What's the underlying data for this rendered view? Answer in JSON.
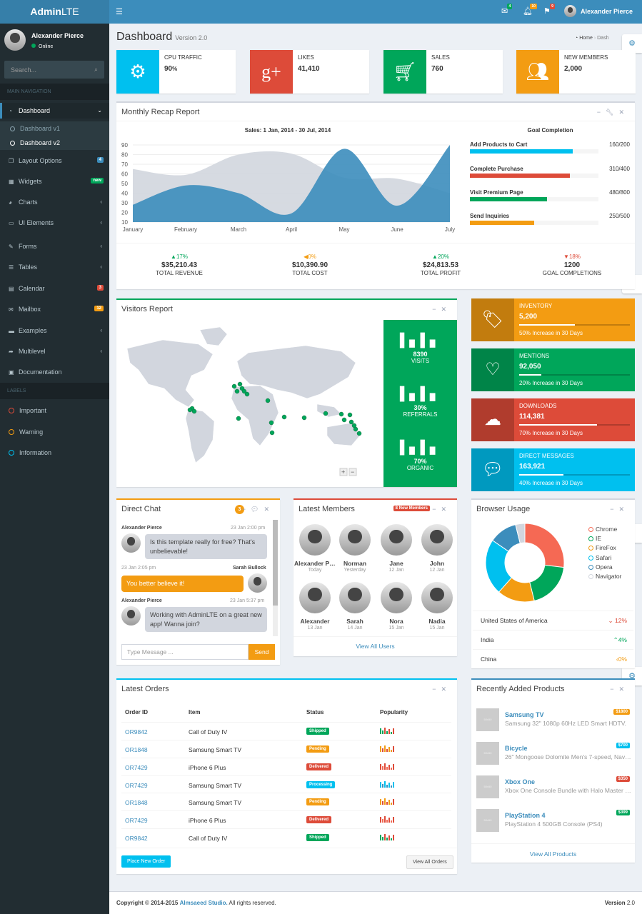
{
  "app": {
    "logo_bold": "Admin",
    "logo_light": "LTE",
    "user": "Alexander Pierce",
    "status": "Online"
  },
  "topnav": {
    "messages_count": "4",
    "notifications_count": "10",
    "tasks_count": "9"
  },
  "sidebar": {
    "search_placeholder": "Search...",
    "main_header": "MAIN NAVIGATION",
    "items": [
      {
        "label": "Dashboard"
      },
      {
        "label": "Dashboard v1"
      },
      {
        "label": "Dashboard v2"
      },
      {
        "label": "Layout Options",
        "badge": "4"
      },
      {
        "label": "Widgets",
        "badge": "new"
      },
      {
        "label": "Charts"
      },
      {
        "label": "UI Elements"
      },
      {
        "label": "Forms"
      },
      {
        "label": "Tables"
      },
      {
        "label": "Calendar",
        "badge": "3"
      },
      {
        "label": "Mailbox",
        "badge": "12"
      },
      {
        "label": "Examples"
      },
      {
        "label": "Multilevel"
      },
      {
        "label": "Documentation"
      }
    ],
    "labels_header": "LABELS",
    "labels": [
      "Important",
      "Warning",
      "Information"
    ]
  },
  "page": {
    "title": "Dashboard",
    "subtitle": "Version 2.0",
    "bc_home": "Home",
    "bc_cur": "Dash"
  },
  "info_boxes": [
    {
      "title": "CPU TRAFFIC",
      "value": "90",
      "unit": "%",
      "color": "#00c0ef",
      "icon": "gear-icon"
    },
    {
      "title": "LIKES",
      "value": "41,410",
      "color": "#dd4b39",
      "icon": "google-plus-icon"
    },
    {
      "title": "SALES",
      "value": "760",
      "color": "#00a65a",
      "icon": "cart-icon"
    },
    {
      "title": "NEW MEMBERS",
      "value": "2,000",
      "color": "#f39c12",
      "icon": "people-icon"
    }
  ],
  "recap": {
    "title": "Monthly Recap Report",
    "goal_title": "Goal Completion",
    "goals": [
      {
        "label": "Add Products to Cart",
        "done": 160,
        "total": 200,
        "text": "160/200",
        "color": "#00c0ef"
      },
      {
        "label": "Complete Purchase",
        "done": 310,
        "total": 400,
        "text": "310/400",
        "color": "#dd4b39"
      },
      {
        "label": "Visit Premium Page",
        "done": 480,
        "total": 800,
        "text": "480/800",
        "color": "#00a65a"
      },
      {
        "label": "Send Inquiries",
        "done": 250,
        "total": 500,
        "text": "250/500",
        "color": "#f39c12"
      }
    ],
    "stats": [
      {
        "pct": "17%",
        "amount": "$35,210.43",
        "label": "TOTAL REVENUE",
        "dir": "up",
        "color": "#00a65a"
      },
      {
        "pct": "0%",
        "amount": "$10,390.90",
        "label": "TOTAL COST",
        "dir": "left",
        "color": "#f39c12"
      },
      {
        "pct": "20%",
        "amount": "$24,813.53",
        "label": "TOTAL PROFIT",
        "dir": "up",
        "color": "#00a65a"
      },
      {
        "pct": "18%",
        "amount": "1200",
        "label": "GOAL COMPLETIONS",
        "dir": "down",
        "color": "#dd4b39"
      }
    ]
  },
  "chart_data": {
    "type": "area",
    "title": "Sales: 1 Jan, 2014 - 30 Jul, 2014",
    "categories": [
      "January",
      "February",
      "March",
      "April",
      "May",
      "June",
      "July"
    ],
    "ylim": [
      10,
      90
    ],
    "yticks": [
      10,
      20,
      30,
      40,
      50,
      60,
      70,
      80,
      90
    ],
    "grid": true,
    "series": [
      {
        "color": "#d2d6de",
        "values": [
          65,
          59,
          80,
          81,
          56,
          55,
          40
        ]
      },
      {
        "color": "#3c8dbc",
        "values": [
          28,
          48,
          40,
          19,
          86,
          27,
          90
        ]
      }
    ]
  },
  "visitors": {
    "title": "Visitors Report",
    "stats": [
      {
        "value": "8390",
        "label": "VISITS"
      },
      {
        "value": "30%",
        "label": "REFERRALS"
      },
      {
        "value": "70%",
        "label": "ORGANIC"
      }
    ]
  },
  "stat_boxes": [
    {
      "title": "INVENTORY",
      "value": "5,200",
      "desc": "50% Increase in 30 Days",
      "progress": 0.5,
      "color": "#f39c12",
      "icon": "tag-icon"
    },
    {
      "title": "MENTIONS",
      "value": "92,050",
      "desc": "20% Increase in 30 Days",
      "progress": 0.2,
      "color": "#00a65a",
      "icon": "heart-icon"
    },
    {
      "title": "DOWNLOADS",
      "value": "114,381",
      "desc": "70% Increase in 30 Days",
      "progress": 0.7,
      "color": "#dd4b39",
      "icon": "cloud-download-icon"
    },
    {
      "title": "DIRECT MESSAGES",
      "value": "163,921",
      "desc": "40% Increase in 30 Days",
      "progress": 0.4,
      "color": "#00c0ef",
      "icon": "chat-icon"
    }
  ],
  "chat": {
    "title": "Direct Chat",
    "badge": "3",
    "messages": [
      {
        "name": "Alexander Pierce",
        "time": "23 Jan 2:00 pm",
        "text": "Is this template really for free? That's unbelievable!"
      },
      {
        "name": "Sarah Bullock",
        "time": "23 Jan 2:05 pm",
        "text": "You better believe it!"
      },
      {
        "name": "Alexander Pierce",
        "time": "23 Jan 5:37 pm",
        "text": "Working with AdminLTE on a great new app! Wanna join?"
      }
    ],
    "placeholder": "Type Message ...",
    "send": "Send"
  },
  "members": {
    "title": "Latest Members",
    "badge": "8 New Members",
    "list": [
      {
        "name": "Alexander Pierce",
        "date": "Today"
      },
      {
        "name": "Norman",
        "date": "Yesterday"
      },
      {
        "name": "Jane",
        "date": "12 Jan"
      },
      {
        "name": "John",
        "date": "12 Jan"
      },
      {
        "name": "Alexander",
        "date": "13 Jan"
      },
      {
        "name": "Sarah",
        "date": "14 Jan"
      },
      {
        "name": "Nora",
        "date": "15 Jan"
      },
      {
        "name": "Nadia",
        "date": "15 Jan"
      }
    ],
    "view_all": "View All Users"
  },
  "browser": {
    "title": "Browser Usage",
    "legend": [
      {
        "name": "Chrome",
        "color": "#f56954"
      },
      {
        "name": "IE",
        "color": "#00a65a"
      },
      {
        "name": "FireFox",
        "color": "#f39c12"
      },
      {
        "name": "Safari",
        "color": "#00c0ef"
      },
      {
        "name": "Opera",
        "color": "#3c8dbc"
      },
      {
        "name": "Navigator",
        "color": "#d2d6de"
      }
    ],
    "slices": [
      700,
      500,
      400,
      600,
      300,
      100
    ],
    "countries": [
      {
        "name": "United States of America",
        "pct": "12%",
        "color": "#dd4b39",
        "dir": "down"
      },
      {
        "name": "India",
        "pct": "4%",
        "color": "#00a65a",
        "dir": "up"
      },
      {
        "name": "China",
        "pct": "0%",
        "color": "#f39c12",
        "dir": "left"
      }
    ]
  },
  "orders": {
    "title": "Latest Orders",
    "headers": [
      "Order ID",
      "Item",
      "Status",
      "Popularity"
    ],
    "rows": [
      {
        "id": "OR9842",
        "item": "Call of Duty IV",
        "status": "Shipped",
        "color": "#00a65a"
      },
      {
        "id": "OR1848",
        "item": "Samsung Smart TV",
        "status": "Pending",
        "color": "#f39c12"
      },
      {
        "id": "OR7429",
        "item": "iPhone 6 Plus",
        "status": "Delivered",
        "color": "#dd4b39"
      },
      {
        "id": "OR7429",
        "item": "Samsung Smart TV",
        "status": "Processing",
        "color": "#00c0ef"
      },
      {
        "id": "OR1848",
        "item": "Samsung Smart TV",
        "status": "Pending",
        "color": "#f39c12"
      },
      {
        "id": "OR7429",
        "item": "iPhone 6 Plus",
        "status": "Delivered",
        "color": "#dd4b39"
      },
      {
        "id": "OR9842",
        "item": "Call of Duty IV",
        "status": "Shipped",
        "color": "#00a65a"
      }
    ],
    "place_btn": "Place New Order",
    "view_btn": "View All Orders"
  },
  "products": {
    "title": "Recently Added Products",
    "img_label": "50x50",
    "list": [
      {
        "name": "Samsung TV",
        "price": "$1800",
        "color": "#f39c12",
        "desc": "Samsung 32\" 1080p 60Hz LED Smart HDTV."
      },
      {
        "name": "Bicycle",
        "price": "$700",
        "color": "#00c0ef",
        "desc": "26\" Mongoose Dolomite Men's 7-speed, Navy Blue."
      },
      {
        "name": "Xbox One",
        "price": "$350",
        "color": "#dd4b39",
        "desc": "Xbox One Console Bundle with Halo Master Chief Collection."
      },
      {
        "name": "PlayStation 4",
        "price": "$399",
        "color": "#00a65a",
        "desc": "PlayStation 4 500GB Console (PS4)"
      }
    ],
    "view_all": "View All Products"
  },
  "footer": {
    "copy": "Copyright © 2014-2015",
    "company": "Almsaeed Studio.",
    "rights": "All rights reserved.",
    "version_label": "Version",
    "version": "2.0"
  }
}
